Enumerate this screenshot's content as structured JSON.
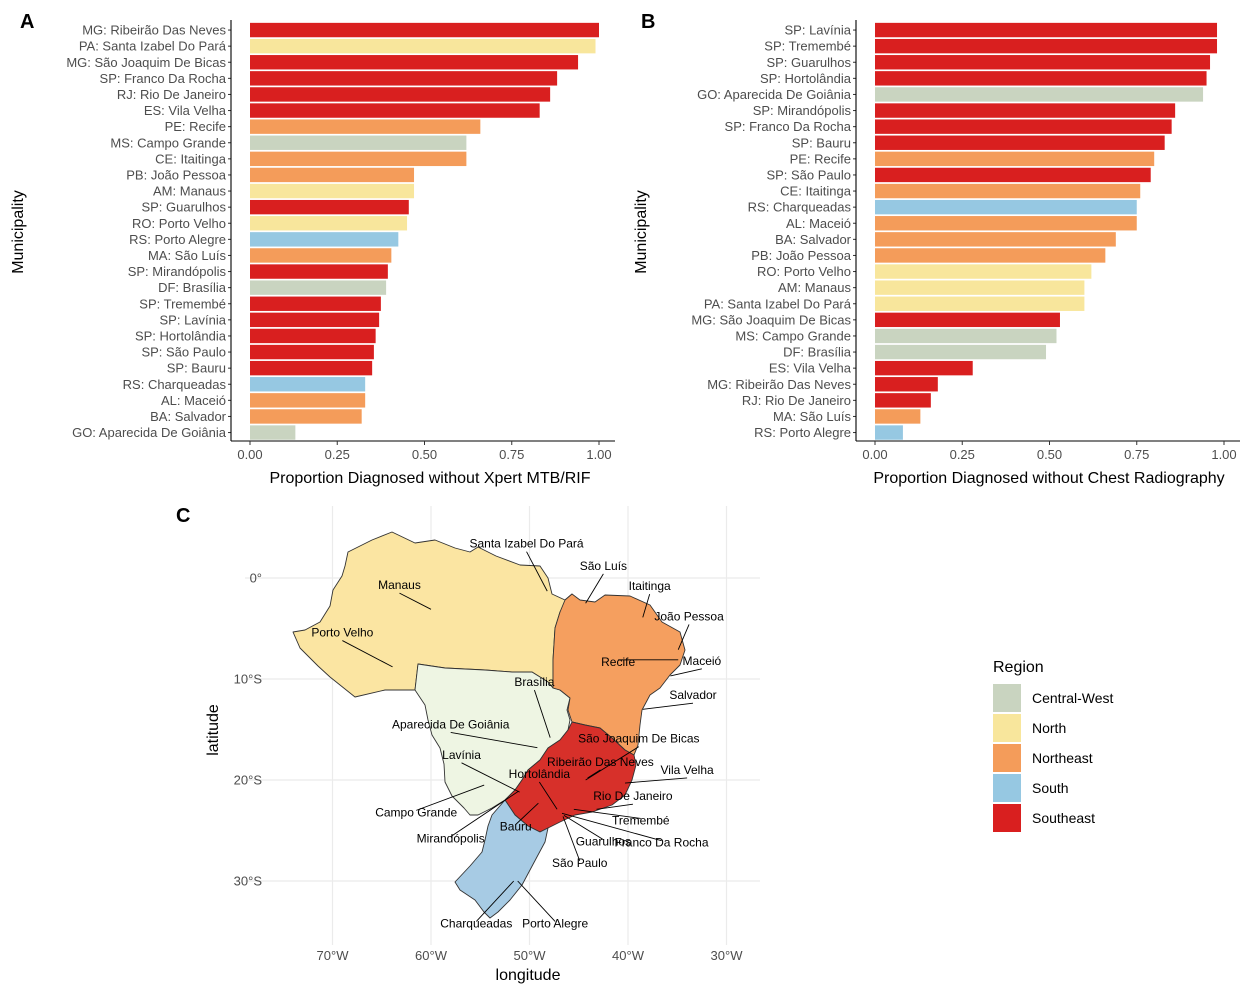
{
  "colors": {
    "Central-West": "#c9d4c0",
    "North": "#f8e69c",
    "Northeast": "#f49c5a",
    "South": "#96c8e2",
    "Southeast": "#d91f1f"
  },
  "map_colors": {
    "Central-West": "#eef5e3",
    "North": "#fbe5a2",
    "Northeast": "#f59f5f",
    "South": "#a7cbe4",
    "Southeast": "#d7302a"
  },
  "chart_data": [
    {
      "panel": "A",
      "type": "bar",
      "orientation": "horizontal",
      "xlabel": "Proportion Diagnosed without Xpert MTB/RIF",
      "ylabel": "Municipality",
      "xlim": [
        0,
        1
      ],
      "xticks": [
        "0.00",
        "0.25",
        "0.50",
        "0.75",
        "1.00"
      ],
      "bars": [
        {
          "label": "MG: Ribeirão Das Neves",
          "value": 1.0,
          "region": "Southeast"
        },
        {
          "label": "PA: Santa Izabel Do Pará",
          "value": 0.99,
          "region": "North"
        },
        {
          "label": "MG: São Joaquim De Bicas",
          "value": 0.94,
          "region": "Southeast"
        },
        {
          "label": "SP: Franco Da Rocha",
          "value": 0.88,
          "region": "Southeast"
        },
        {
          "label": "RJ: Rio De Janeiro",
          "value": 0.86,
          "region": "Southeast"
        },
        {
          "label": "ES: Vila Velha",
          "value": 0.83,
          "region": "Southeast"
        },
        {
          "label": "PE: Recife",
          "value": 0.66,
          "region": "Northeast"
        },
        {
          "label": "MS: Campo Grande",
          "value": 0.62,
          "region": "Central-West"
        },
        {
          "label": "CE: Itaitinga",
          "value": 0.62,
          "region": "Northeast"
        },
        {
          "label": "PB: João Pessoa",
          "value": 0.47,
          "region": "Northeast"
        },
        {
          "label": "AM: Manaus",
          "value": 0.47,
          "region": "North"
        },
        {
          "label": "SP: Guarulhos",
          "value": 0.455,
          "region": "Southeast"
        },
        {
          "label": "RO: Porto Velho",
          "value": 0.45,
          "region": "North"
        },
        {
          "label": "RS: Porto Alegre",
          "value": 0.425,
          "region": "South"
        },
        {
          "label": "MA: São Luís",
          "value": 0.405,
          "region": "Northeast"
        },
        {
          "label": "SP: Mirandópolis",
          "value": 0.395,
          "region": "Southeast"
        },
        {
          "label": "DF: Brasília",
          "value": 0.39,
          "region": "Central-West"
        },
        {
          "label": "SP: Tremembé",
          "value": 0.375,
          "region": "Southeast"
        },
        {
          "label": "SP: Lavínia",
          "value": 0.37,
          "region": "Southeast"
        },
        {
          "label": "SP: Hortolândia",
          "value": 0.36,
          "region": "Southeast"
        },
        {
          "label": "SP: São Paulo",
          "value": 0.355,
          "region": "Southeast"
        },
        {
          "label": "SP: Bauru",
          "value": 0.35,
          "region": "Southeast"
        },
        {
          "label": "RS: Charqueadas",
          "value": 0.33,
          "region": "South"
        },
        {
          "label": "AL: Maceió",
          "value": 0.33,
          "region": "Northeast"
        },
        {
          "label": "BA: Salvador",
          "value": 0.32,
          "region": "Northeast"
        },
        {
          "label": "GO: Aparecida De Goiânia",
          "value": 0.13,
          "region": "Central-West"
        }
      ]
    },
    {
      "panel": "B",
      "type": "bar",
      "orientation": "horizontal",
      "xlabel": "Proportion Diagnosed without Chest Radiography",
      "ylabel": "Municipality",
      "xlim": [
        0,
        1
      ],
      "xticks": [
        "0.00",
        "0.25",
        "0.50",
        "0.75",
        "1.00"
      ],
      "bars": [
        {
          "label": "SP: Lavínia",
          "value": 0.98,
          "region": "Southeast"
        },
        {
          "label": "SP: Tremembé",
          "value": 0.98,
          "region": "Southeast"
        },
        {
          "label": "SP: Guarulhos",
          "value": 0.96,
          "region": "Southeast"
        },
        {
          "label": "SP: Hortolândia",
          "value": 0.95,
          "region": "Southeast"
        },
        {
          "label": "GO: Aparecida De Goiânia",
          "value": 0.94,
          "region": "Central-West"
        },
        {
          "label": "SP: Mirandópolis",
          "value": 0.86,
          "region": "Southeast"
        },
        {
          "label": "SP: Franco Da Rocha",
          "value": 0.85,
          "region": "Southeast"
        },
        {
          "label": "SP: Bauru",
          "value": 0.83,
          "region": "Southeast"
        },
        {
          "label": "PE: Recife",
          "value": 0.8,
          "region": "Northeast"
        },
        {
          "label": "SP: São Paulo",
          "value": 0.79,
          "region": "Southeast"
        },
        {
          "label": "CE: Itaitinga",
          "value": 0.76,
          "region": "Northeast"
        },
        {
          "label": "RS: Charqueadas",
          "value": 0.75,
          "region": "South"
        },
        {
          "label": "AL: Maceió",
          "value": 0.75,
          "region": "Northeast"
        },
        {
          "label": "BA: Salvador",
          "value": 0.69,
          "region": "Northeast"
        },
        {
          "label": "PB: João Pessoa",
          "value": 0.66,
          "region": "Northeast"
        },
        {
          "label": "RO: Porto Velho",
          "value": 0.62,
          "region": "North"
        },
        {
          "label": "AM: Manaus",
          "value": 0.6,
          "region": "North"
        },
        {
          "label": "PA: Santa Izabel Do Pará",
          "value": 0.6,
          "region": "North"
        },
        {
          "label": "MG: São Joaquim De Bicas",
          "value": 0.53,
          "region": "Southeast"
        },
        {
          "label": "MS: Campo Grande",
          "value": 0.52,
          "region": "Central-West"
        },
        {
          "label": "DF: Brasília",
          "value": 0.49,
          "region": "Central-West"
        },
        {
          "label": "ES: Vila Velha",
          "value": 0.28,
          "region": "Southeast"
        },
        {
          "label": "MG: Ribeirão Das Neves",
          "value": 0.18,
          "region": "Southeast"
        },
        {
          "label": "RJ: Rio De Janeiro",
          "value": 0.16,
          "region": "Southeast"
        },
        {
          "label": "MA: São Luís",
          "value": 0.13,
          "region": "Northeast"
        },
        {
          "label": "RS: Porto Alegre",
          "value": 0.08,
          "region": "South"
        }
      ]
    },
    {
      "panel": "C",
      "type": "map",
      "xlabel": "longitude",
      "ylabel": "latitude",
      "xlim": [
        -75,
        -27
      ],
      "ylim": [
        -34.5,
        4
      ],
      "xticks": [
        {
          "value": -70,
          "label": "70°W"
        },
        {
          "value": -60,
          "label": "60°W"
        },
        {
          "value": -50,
          "label": "50°W"
        },
        {
          "value": -40,
          "label": "40°W"
        },
        {
          "value": -30,
          "label": "30°W"
        }
      ],
      "yticks": [
        {
          "value": 0,
          "label": "0°"
        },
        {
          "value": -10,
          "label": "10°S"
        },
        {
          "value": -20,
          "label": "20°S"
        },
        {
          "value": -30,
          "label": "30°S"
        }
      ],
      "cities": [
        {
          "name": "Santa Izabel Do Pará",
          "lon": -48.2,
          "lat": -1.3,
          "tlon": -50.3,
          "tlat": 3.0
        },
        {
          "name": "São Luís",
          "lon": -44.3,
          "lat": -2.5,
          "tlon": -42.5,
          "tlat": 0.8
        },
        {
          "name": "Itaitinga",
          "lon": -38.5,
          "lat": -3.9,
          "tlon": -37.8,
          "tlat": -1.2
        },
        {
          "name": "João Pessoa",
          "lon": -34.9,
          "lat": -7.1,
          "tlon": -33.8,
          "tlat": -4.2
        },
        {
          "name": "Recife",
          "lon": -34.9,
          "lat": -8.1,
          "tlon": -41.0,
          "tlat": -8.7
        },
        {
          "name": "Maceió",
          "lon": -35.7,
          "lat": -9.7,
          "tlon": -32.5,
          "tlat": -8.6
        },
        {
          "name": "Salvador",
          "lon": -38.5,
          "lat": -13.0,
          "tlon": -33.4,
          "tlat": -12.0
        },
        {
          "name": "Manaus",
          "lon": -60.0,
          "lat": -3.1,
          "tlon": -63.2,
          "tlat": -1.1
        },
        {
          "name": "Porto Velho",
          "lon": -63.9,
          "lat": -8.8,
          "tlon": -69.0,
          "tlat": -5.8
        },
        {
          "name": "Brasília",
          "lon": -47.9,
          "lat": -15.8,
          "tlon": -49.5,
          "tlat": -10.7
        },
        {
          "name": "Aparecida De Goiânia",
          "lon": -49.2,
          "lat": -16.8,
          "tlon": -58.0,
          "tlat": -14.9
        },
        {
          "name": "São Joaquim De Bicas",
          "lon": -44.3,
          "lat": -20.0,
          "tlon": -38.9,
          "tlat": -16.3
        },
        {
          "name": "Ribeirão Das Neves",
          "lon": -44.1,
          "lat": -19.8,
          "tlon": -42.8,
          "tlat": -18.6
        },
        {
          "name": "Vila Velha",
          "lon": -40.3,
          "lat": -20.3,
          "tlon": -34.0,
          "tlat": -19.4
        },
        {
          "name": "Lavínia",
          "lon": -51.0,
          "lat": -21.2,
          "tlon": -56.9,
          "tlat": -17.9
        },
        {
          "name": "Hortolândia",
          "lon": -47.2,
          "lat": -22.9,
          "tlon": -49.0,
          "tlat": -19.8
        },
        {
          "name": "Rio De Janeiro",
          "lon": -43.2,
          "lat": -22.9,
          "tlon": -39.5,
          "tlat": -22.0
        },
        {
          "name": "Campo Grande",
          "lon": -54.6,
          "lat": -20.5,
          "tlon": -61.5,
          "tlat": -23.6
        },
        {
          "name": "Tremembé",
          "lon": -45.5,
          "lat": -22.9,
          "tlon": -38.7,
          "tlat": -24.4
        },
        {
          "name": "Bauru",
          "lon": -49.1,
          "lat": -22.3,
          "tlon": -51.4,
          "tlat": -25.0
        },
        {
          "name": "Mirandópolis",
          "lon": -51.1,
          "lat": -21.1,
          "tlon": -58.0,
          "tlat": -26.2
        },
        {
          "name": "Guarulhos",
          "lon": -46.5,
          "lat": -23.5,
          "tlon": -42.5,
          "tlat": -26.5
        },
        {
          "name": "Franco Da Rocha",
          "lon": -46.7,
          "lat": -23.3,
          "tlon": -36.6,
          "tlat": -26.6
        },
        {
          "name": "São Paulo",
          "lon": -46.6,
          "lat": -23.6,
          "tlon": -44.9,
          "tlat": -28.6
        },
        {
          "name": "Charqueadas",
          "lon": -51.6,
          "lat": -30.0,
          "tlon": -55.4,
          "tlat": -34.6
        },
        {
          "name": "Porto Alegre",
          "lon": -51.2,
          "lat": -30.0,
          "tlon": -47.4,
          "tlat": -34.6
        }
      ]
    }
  ],
  "legend": {
    "title": "Region",
    "items": [
      "Central-West",
      "North",
      "Northeast",
      "South",
      "Southeast"
    ]
  }
}
